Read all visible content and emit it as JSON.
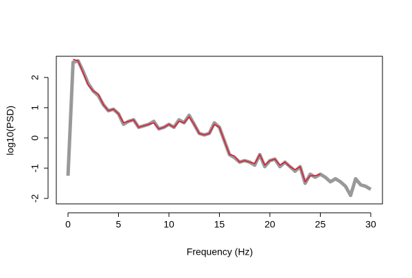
{
  "chart_data": {
    "type": "line",
    "xlabel": "Frequency (Hz)",
    "ylabel": "log10(PSD)",
    "x": [
      0,
      0.5,
      1,
      1.5,
      2,
      2.5,
      3,
      3.5,
      4,
      4.5,
      5,
      5.5,
      6,
      6.5,
      7,
      7.5,
      8,
      8.5,
      9,
      9.5,
      10,
      10.5,
      11,
      11.5,
      12,
      12.5,
      13,
      13.5,
      14,
      14.5,
      15,
      15.5,
      16,
      16.5,
      17,
      17.5,
      18,
      18.5,
      19,
      19.5,
      20,
      20.5,
      21,
      21.5,
      22,
      22.5,
      23,
      23.5,
      24,
      24.5,
      25,
      25.5,
      26,
      26.5,
      27,
      27.5,
      28,
      28.5,
      29,
      29.5,
      30
    ],
    "series": [
      {
        "color": "#999999",
        "width": 5,
        "values": [
          -1.25,
          2.5,
          2.55,
          2.2,
          1.8,
          1.55,
          1.4,
          1.1,
          0.9,
          0.95,
          0.8,
          0.45,
          0.55,
          0.6,
          0.35,
          0.4,
          0.45,
          0.55,
          0.3,
          0.35,
          0.45,
          0.35,
          0.6,
          0.5,
          0.75,
          0.45,
          0.15,
          0.1,
          0.15,
          0.5,
          0.35,
          -0.1,
          -0.55,
          -0.65,
          -0.8,
          -0.75,
          -0.8,
          -0.9,
          -0.55,
          -0.95,
          -0.75,
          -0.7,
          -0.95,
          -0.8,
          -0.95,
          -1.1,
          -0.95,
          -1.5,
          -1.2,
          -1.3,
          -1.2,
          -1.3,
          -1.45,
          -1.35,
          -1.45,
          -1.6,
          -1.9,
          -1.35,
          -1.55,
          -1.6,
          -1.7
        ]
      },
      {
        "color": "#e8112d",
        "width": 1.5,
        "values": [
          null,
          2.6,
          2.55,
          2.15,
          1.75,
          1.55,
          1.45,
          1.1,
          0.9,
          0.95,
          0.8,
          0.5,
          0.55,
          0.6,
          0.35,
          0.4,
          0.45,
          0.5,
          0.3,
          0.35,
          0.45,
          0.35,
          0.55,
          0.5,
          0.7,
          0.45,
          0.15,
          0.1,
          0.15,
          0.45,
          0.35,
          -0.1,
          -0.55,
          -0.6,
          -0.8,
          -0.75,
          -0.8,
          -0.85,
          -0.55,
          -0.9,
          -0.75,
          -0.7,
          -0.9,
          -0.8,
          -0.95,
          -1.05,
          -0.95,
          -1.45,
          -1.25,
          -1.25,
          -1.2,
          null,
          null,
          null,
          null,
          null,
          null,
          null,
          null,
          null,
          null
        ]
      }
    ],
    "xlim": [
      -1.16,
      31.16
    ],
    "ylim": [
      -2.18,
      2.7
    ],
    "xticks": [
      0,
      5,
      10,
      15,
      20,
      25,
      30
    ],
    "yticks": [
      -2,
      -1,
      0,
      1,
      2
    ]
  }
}
